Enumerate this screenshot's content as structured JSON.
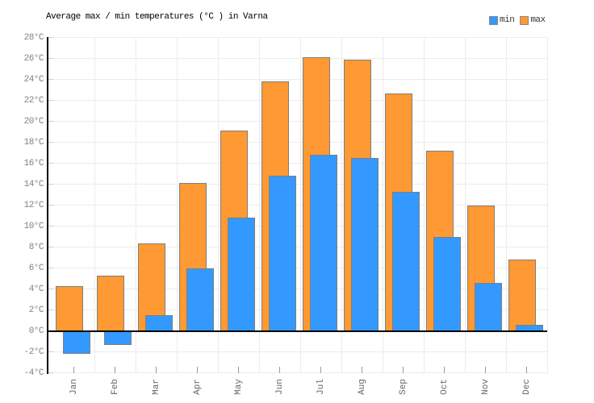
{
  "title": "Average max / min temperatures (°C ) in Varna",
  "legend": {
    "items": [
      {
        "label": "min",
        "color": "#3399FF"
      },
      {
        "label": "max",
        "color": "#FF9933"
      }
    ]
  },
  "chart_data": {
    "type": "bar",
    "title": "Average max / min temperatures (°C ) in Varna",
    "categories": [
      "Jan",
      "Feb",
      "Mar",
      "Apr",
      "May",
      "Jun",
      "Jul",
      "Aug",
      "Sep",
      "Oct",
      "Nov",
      "Dec"
    ],
    "series": [
      {
        "name": "max",
        "color": "#FF9933",
        "values": [
          4.3,
          5.3,
          8.4,
          14.1,
          19.1,
          23.8,
          26.1,
          25.9,
          22.7,
          17.2,
          12.0,
          6.8
        ]
      },
      {
        "name": "min",
        "color": "#3399FF",
        "values": [
          -2.2,
          -1.3,
          1.5,
          6.0,
          10.8,
          14.8,
          16.8,
          16.5,
          13.3,
          9.0,
          4.6,
          0.6
        ]
      }
    ],
    "xlabel": "",
    "ylabel": "",
    "ylim": [
      -4,
      28
    ],
    "ytick_step": 2,
    "ytick_labels": [
      "28°C",
      "26°C",
      "24°C",
      "22°C",
      "20°C",
      "18°C",
      "16°C",
      "14°C",
      "12°C",
      "10°C",
      "8°C",
      "6°C",
      "4°C",
      "2°C",
      "0°C",
      "-2°C",
      "-4°C"
    ],
    "grid": true,
    "legend_position": "top-right",
    "bar_style": "overlapped",
    "colors": {
      "grid": "#ececec",
      "axis_line": "#000000",
      "bar_border": "#7f7f7f",
      "y_tick": "#cccccc",
      "x_tick": "#999999",
      "y_tick_label": "#808080",
      "x_tick_label": "#666666"
    }
  }
}
